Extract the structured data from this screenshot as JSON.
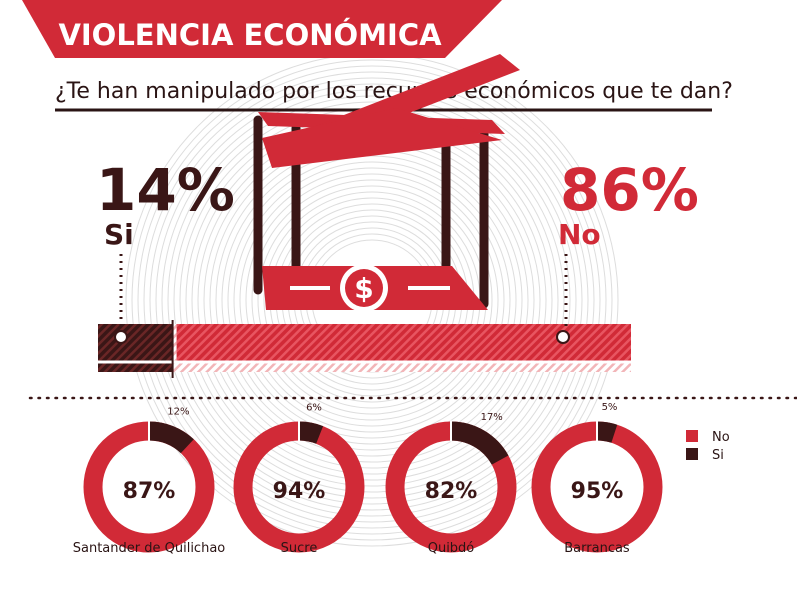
{
  "header": {
    "title": "VIOLENCIA ECONÓMICA",
    "question": "¿Te han manipulado por los recursos económicos que te dan?"
  },
  "colors": {
    "red": "#d12a37",
    "dark": "#3a1616",
    "stripe_light": "#f2b5b8",
    "ring": "#dddddd"
  },
  "summary": {
    "si": {
      "percent": "14%",
      "label": "Si",
      "value": 14
    },
    "no": {
      "percent": "86%",
      "label": "No",
      "value": 86
    }
  },
  "icon": {
    "name": "crossed-out-money-cage-icon",
    "symbol": "$"
  },
  "legend": [
    {
      "label": "No",
      "color": "#d12a37"
    },
    {
      "label": "Si",
      "color": "#3a1616"
    }
  ],
  "chart_data": {
    "type": "pie",
    "title": "¿Te han manipulado por los recursos económicos que te dan?",
    "series_names": [
      "No",
      "Si"
    ],
    "overall": {
      "no": 86,
      "si": 14
    },
    "donuts": [
      {
        "city": "Santander de Quilichao",
        "no": 87,
        "si": 12,
        "no_label": "87%",
        "si_label": "12%"
      },
      {
        "city": "Sucre",
        "no": 94,
        "si": 6,
        "no_label": "94%",
        "si_label": "6%"
      },
      {
        "city": "Quibdó",
        "no": 82,
        "si": 17,
        "no_label": "82%",
        "si_label": "17%"
      },
      {
        "city": "Barrancas",
        "no": 95,
        "si": 5,
        "no_label": "95%",
        "si_label": "5%"
      }
    ]
  }
}
